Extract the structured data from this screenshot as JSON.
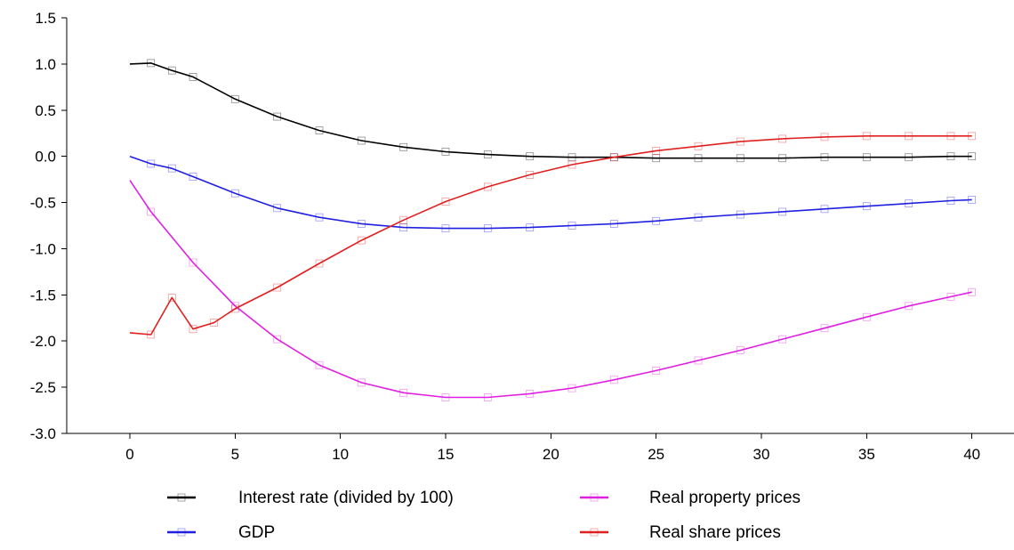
{
  "chart_data": {
    "type": "line",
    "title": "",
    "xlabel": "",
    "ylabel": "",
    "xlim": [
      -3,
      42
    ],
    "ylim": [
      -3.0,
      1.5
    ],
    "x_ticks": [
      "0",
      "5",
      "10",
      "15",
      "20",
      "25",
      "30",
      "35",
      "40"
    ],
    "y_ticks": [
      "1.5",
      "1.0",
      "0.5",
      "0.0",
      "-0.5",
      "-1.0",
      "-1.5",
      "-2.0",
      "-2.5",
      "-3.0"
    ],
    "grid": false,
    "legend_position": "bottom",
    "series": [
      {
        "name": "Interest rate (divided by 100)",
        "color": "#000000",
        "x": [
          0,
          1,
          2,
          3,
          5,
          7,
          9,
          11,
          13,
          15,
          17,
          19,
          21,
          23,
          25,
          27,
          29,
          31,
          33,
          35,
          37,
          39,
          40
        ],
        "values": [
          1.0,
          1.01,
          0.93,
          0.86,
          0.62,
          0.43,
          0.28,
          0.17,
          0.1,
          0.05,
          0.02,
          0.0,
          -0.01,
          -0.01,
          -0.02,
          -0.02,
          -0.02,
          -0.02,
          -0.01,
          -0.01,
          -0.01,
          0.0,
          0.0
        ]
      },
      {
        "name": "GDP",
        "color": "#2020e0",
        "x": [
          0,
          1,
          2,
          3,
          5,
          7,
          9,
          11,
          13,
          15,
          17,
          19,
          21,
          23,
          25,
          27,
          29,
          31,
          33,
          35,
          37,
          39,
          40
        ],
        "values": [
          0.0,
          -0.08,
          -0.13,
          -0.22,
          -0.4,
          -0.56,
          -0.66,
          -0.73,
          -0.77,
          -0.78,
          -0.78,
          -0.77,
          -0.75,
          -0.73,
          -0.7,
          -0.66,
          -0.63,
          -0.6,
          -0.57,
          -0.54,
          -0.51,
          -0.48,
          -0.47
        ]
      },
      {
        "name": "Real property prices",
        "color": "#e020e0",
        "x": [
          0,
          1,
          3,
          5,
          7,
          9,
          11,
          13,
          15,
          17,
          19,
          21,
          23,
          25,
          27,
          29,
          31,
          33,
          35,
          37,
          39,
          40
        ],
        "values": [
          -0.26,
          -0.6,
          -1.15,
          -1.62,
          -1.98,
          -2.26,
          -2.45,
          -2.56,
          -2.61,
          -2.61,
          -2.57,
          -2.51,
          -2.42,
          -2.32,
          -2.21,
          -2.1,
          -1.98,
          -1.86,
          -1.74,
          -1.62,
          -1.52,
          -1.47
        ]
      },
      {
        "name": "Real share prices",
        "color": "#e02020",
        "x": [
          0,
          1,
          2,
          3,
          4,
          5,
          7,
          9,
          11,
          13,
          15,
          17,
          19,
          21,
          23,
          25,
          27,
          29,
          31,
          33,
          35,
          37,
          39,
          40
        ],
        "values": [
          -1.91,
          -1.93,
          -1.53,
          -1.87,
          -1.8,
          -1.65,
          -1.42,
          -1.16,
          -0.91,
          -0.69,
          -0.49,
          -0.33,
          -0.2,
          -0.09,
          -0.01,
          0.06,
          0.11,
          0.16,
          0.19,
          0.21,
          0.22,
          0.22,
          0.22,
          0.22
        ]
      }
    ]
  }
}
